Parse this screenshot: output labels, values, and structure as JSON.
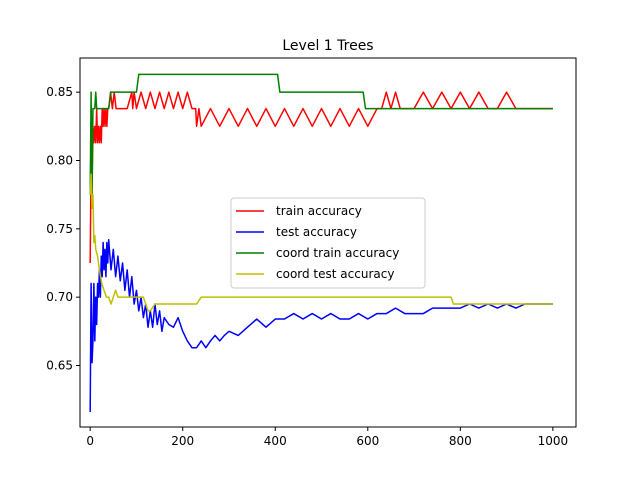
{
  "chart_data": {
    "type": "line",
    "title": "Level 1 Trees",
    "xlabel": "",
    "ylabel": "",
    "xlim": [
      -22,
      1050
    ],
    "ylim": [
      0.605,
      0.875
    ],
    "xticks": [
      0,
      200,
      400,
      600,
      800,
      1000
    ],
    "xtick_labels": [
      "0",
      "200",
      "400",
      "600",
      "800",
      "1000"
    ],
    "yticks": [
      0.65,
      0.7,
      0.75,
      0.8,
      0.85
    ],
    "ytick_labels": [
      "0.65",
      "0.70",
      "0.75",
      "0.80",
      "0.85"
    ],
    "grid": false,
    "legend_position": "center",
    "series": [
      {
        "name": "train accuracy",
        "color": "#ff0000",
        "x": [
          0,
          2,
          4,
          6,
          8,
          10,
          12,
          14,
          16,
          18,
          20,
          22,
          24,
          26,
          28,
          30,
          32,
          34,
          36,
          38,
          40,
          44,
          48,
          52,
          56,
          60,
          80,
          90,
          92,
          95,
          100,
          110,
          120,
          130,
          140,
          150,
          160,
          170,
          180,
          190,
          200,
          210,
          220,
          228,
          230,
          235,
          240,
          260,
          280,
          300,
          320,
          340,
          360,
          380,
          400,
          420,
          440,
          460,
          480,
          500,
          520,
          540,
          560,
          580,
          600,
          620,
          630,
          640,
          650,
          660,
          670,
          680,
          690,
          700,
          720,
          740,
          760,
          780,
          800,
          820,
          840,
          860,
          880,
          900,
          920,
          940,
          960,
          980,
          1000
        ],
        "y": [
          0.725,
          0.8,
          0.775,
          0.825,
          0.813,
          0.825,
          0.813,
          0.838,
          0.813,
          0.825,
          0.813,
          0.825,
          0.813,
          0.838,
          0.825,
          0.838,
          0.825,
          0.838,
          0.825,
          0.838,
          0.838,
          0.85,
          0.838,
          0.85,
          0.838,
          0.838,
          0.838,
          0.85,
          0.838,
          0.85,
          0.838,
          0.85,
          0.838,
          0.85,
          0.838,
          0.85,
          0.838,
          0.85,
          0.838,
          0.85,
          0.838,
          0.85,
          0.838,
          0.838,
          0.825,
          0.838,
          0.825,
          0.838,
          0.825,
          0.838,
          0.825,
          0.838,
          0.825,
          0.838,
          0.825,
          0.838,
          0.825,
          0.838,
          0.825,
          0.838,
          0.825,
          0.838,
          0.825,
          0.838,
          0.825,
          0.838,
          0.838,
          0.85,
          0.838,
          0.85,
          0.838,
          0.838,
          0.838,
          0.838,
          0.85,
          0.838,
          0.85,
          0.838,
          0.85,
          0.838,
          0.85,
          0.838,
          0.838,
          0.85,
          0.838,
          0.838,
          0.838,
          0.838,
          0.838
        ]
      },
      {
        "name": "test accuracy",
        "color": "#0000ff",
        "x": [
          0,
          2,
          4,
          6,
          8,
          10,
          12,
          14,
          16,
          18,
          20,
          22,
          24,
          26,
          28,
          30,
          32,
          34,
          36,
          38,
          40,
          45,
          50,
          55,
          60,
          65,
          70,
          75,
          80,
          85,
          90,
          95,
          100,
          105,
          110,
          115,
          120,
          125,
          130,
          135,
          140,
          145,
          150,
          155,
          160,
          170,
          180,
          190,
          200,
          210,
          220,
          230,
          240,
          250,
          260,
          270,
          280,
          290,
          300,
          320,
          340,
          360,
          380,
          400,
          420,
          440,
          460,
          480,
          500,
          520,
          540,
          560,
          580,
          600,
          620,
          640,
          660,
          680,
          700,
          720,
          740,
          760,
          780,
          800,
          820,
          840,
          860,
          880,
          900,
          920,
          940,
          960,
          980,
          1000
        ],
        "y": [
          0.616,
          0.71,
          0.652,
          0.668,
          0.71,
          0.668,
          0.7,
          0.68,
          0.71,
          0.7,
          0.72,
          0.7,
          0.73,
          0.715,
          0.74,
          0.72,
          0.735,
          0.715,
          0.74,
          0.725,
          0.742,
          0.72,
          0.735,
          0.715,
          0.73,
          0.712,
          0.725,
          0.705,
          0.72,
          0.7,
          0.715,
          0.695,
          0.705,
          0.69,
          0.7,
          0.685,
          0.695,
          0.678,
          0.69,
          0.678,
          0.695,
          0.68,
          0.69,
          0.675,
          0.685,
          0.68,
          0.678,
          0.685,
          0.675,
          0.668,
          0.663,
          0.663,
          0.668,
          0.663,
          0.668,
          0.672,
          0.668,
          0.672,
          0.675,
          0.672,
          0.678,
          0.684,
          0.678,
          0.684,
          0.684,
          0.688,
          0.684,
          0.688,
          0.684,
          0.688,
          0.684,
          0.684,
          0.688,
          0.684,
          0.688,
          0.688,
          0.692,
          0.688,
          0.688,
          0.688,
          0.692,
          0.692,
          0.692,
          0.692,
          0.695,
          0.692,
          0.695,
          0.692,
          0.695,
          0.692,
          0.695,
          0.695,
          0.695,
          0.695
        ]
      },
      {
        "name": "coord train accuracy",
        "color": "#008000",
        "x": [
          0,
          2,
          4,
          6,
          8,
          10,
          12,
          14,
          16,
          18,
          20,
          25,
          40,
          45,
          100,
          105,
          405,
          410,
          590,
          595,
          1000
        ],
        "y": [
          0.775,
          0.85,
          0.775,
          0.838,
          0.838,
          0.838,
          0.85,
          0.838,
          0.838,
          0.838,
          0.838,
          0.838,
          0.838,
          0.85,
          0.85,
          0.863,
          0.863,
          0.85,
          0.85,
          0.838,
          0.838
        ]
      },
      {
        "name": "coord test accuracy",
        "color": "#bfbf00",
        "x": [
          0,
          2,
          4,
          6,
          8,
          10,
          12,
          16,
          20,
          25,
          30,
          35,
          40,
          45,
          50,
          55,
          60,
          70,
          80,
          100,
          115,
          120,
          125,
          130,
          140,
          150,
          160,
          180,
          200,
          230,
          240,
          250,
          300,
          400,
          500,
          600,
          700,
          780,
          785,
          1000
        ],
        "y": [
          0.775,
          0.79,
          0.765,
          0.775,
          0.74,
          0.745,
          0.735,
          0.73,
          0.72,
          0.71,
          0.705,
          0.7,
          0.7,
          0.695,
          0.7,
          0.705,
          0.7,
          0.7,
          0.7,
          0.7,
          0.7,
          0.695,
          0.69,
          0.69,
          0.695,
          0.695,
          0.695,
          0.695,
          0.695,
          0.695,
          0.7,
          0.7,
          0.7,
          0.7,
          0.7,
          0.7,
          0.7,
          0.7,
          0.695,
          0.695
        ]
      }
    ]
  }
}
